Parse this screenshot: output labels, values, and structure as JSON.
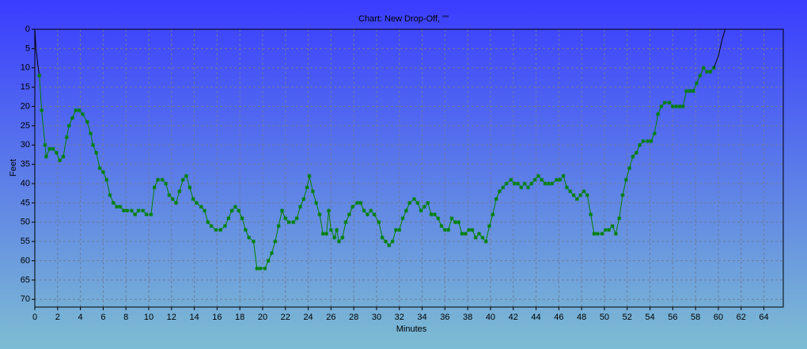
{
  "chart_data": {
    "type": "line",
    "title": "Chart: New Drop-Off, \"\"",
    "xlabel": "Minutes",
    "ylabel": "Feet",
    "xlim": [
      0,
      65.7
    ],
    "ylim": [
      0,
      72
    ],
    "y_inverted": true,
    "grid": true,
    "xticks": [
      0,
      2,
      4,
      6,
      8,
      10,
      12,
      14,
      16,
      18,
      20,
      22,
      24,
      26,
      28,
      30,
      32,
      34,
      36,
      38,
      40,
      42,
      44,
      46,
      48,
      50,
      52,
      54,
      56,
      58,
      60,
      62,
      64
    ],
    "yticks": [
      0,
      5,
      10,
      15,
      20,
      25,
      30,
      35,
      40,
      45,
      50,
      55,
      60,
      65,
      70
    ],
    "series": [
      {
        "color": "#000000",
        "markers": false,
        "x": [
          0,
          0.1,
          0.3,
          0.4
        ],
        "values": [
          0,
          5,
          10,
          12
        ]
      },
      {
        "color": "#008000",
        "markers": true,
        "x": [
          0.4,
          0.6,
          0.9,
          1.0,
          1.3,
          1.6,
          1.9,
          2.2,
          2.5,
          2.8,
          3.0,
          3.3,
          3.6,
          3.9,
          4.2,
          4.6,
          4.9,
          5.1,
          5.4,
          5.7,
          6.0,
          6.3,
          6.6,
          6.9,
          7.2,
          7.5,
          7.8,
          8.1,
          8.5,
          8.8,
          9.1,
          9.5,
          9.8,
          10.2,
          10.5,
          10.8,
          11.2,
          11.5,
          11.8,
          12.1,
          12.4,
          12.7,
          13.0,
          13.3,
          13.6,
          13.9,
          14.2,
          14.6,
          14.9,
          15.2,
          15.5,
          15.9,
          16.3,
          16.7,
          17.0,
          17.3,
          17.6,
          17.9,
          18.2,
          18.5,
          18.8,
          19.2,
          19.5,
          19.8,
          20.2,
          20.5,
          20.8,
          21.1,
          21.4,
          21.7,
          22.0,
          22.3,
          22.7,
          23.0,
          23.3,
          23.6,
          23.9,
          24.1,
          24.4,
          24.7,
          25.0,
          25.3,
          25.6,
          25.8,
          26.0,
          26.3,
          26.5,
          26.7,
          27.0,
          27.3,
          27.6,
          27.9,
          28.3,
          28.6,
          28.9,
          29.2,
          29.5,
          29.8,
          30.2,
          30.5,
          30.8,
          31.1,
          31.4,
          31.7,
          32.0,
          32.3,
          32.6,
          32.9,
          33.3,
          33.6,
          33.9,
          34.2,
          34.5,
          34.8,
          35.1,
          35.4,
          35.7,
          36.0,
          36.3,
          36.6,
          36.9,
          37.2,
          37.5,
          37.8,
          38.1,
          38.4,
          38.7,
          39.0,
          39.3,
          39.6,
          39.9,
          40.2,
          40.5,
          40.8,
          41.1,
          41.4,
          41.8,
          42.1,
          42.4,
          42.7,
          43.0,
          43.3,
          43.6,
          43.9,
          44.2,
          44.5,
          44.8,
          45.1,
          45.4,
          45.8,
          46.1,
          46.4,
          46.7,
          47.0,
          47.3,
          47.6,
          47.9,
          48.2,
          48.5,
          48.8,
          49.1,
          49.4,
          49.8,
          50.1,
          50.4,
          50.7,
          51.0,
          51.3,
          51.6,
          51.9,
          52.2,
          52.5,
          52.8,
          53.1,
          53.4,
          53.8,
          54.1,
          54.4,
          54.7,
          55.0,
          55.3,
          55.7,
          56.0,
          56.3,
          56.6,
          56.9,
          57.2,
          57.5,
          57.8,
          58.1,
          58.4,
          58.7,
          59.0,
          59.3,
          59.6
        ],
        "values": [
          12,
          21,
          30,
          33,
          31,
          31,
          32,
          34,
          33,
          28,
          25,
          23,
          21,
          21,
          22,
          24,
          27,
          30,
          32,
          36,
          37,
          39,
          43,
          45,
          46,
          46,
          47,
          47,
          47,
          48,
          47,
          47,
          48,
          48,
          41,
          39,
          39,
          40,
          43,
          44,
          45,
          42,
          39,
          38,
          41,
          44,
          45,
          46,
          47,
          50,
          51,
          52,
          52,
          51,
          49,
          47,
          46,
          47,
          49,
          52,
          54,
          55,
          62,
          62,
          62,
          60,
          58,
          55,
          51,
          47,
          49,
          50,
          50,
          49,
          46,
          44,
          41,
          38,
          42,
          45,
          48,
          53,
          53,
          47,
          52,
          54,
          52,
          55,
          54,
          50,
          48,
          46,
          45,
          45,
          47,
          48,
          47,
          48,
          50,
          54,
          55,
          56,
          55,
          52,
          52,
          49,
          47,
          45,
          44,
          45,
          47,
          46,
          45,
          48,
          48,
          49,
          51,
          52,
          52,
          49,
          50,
          50,
          53,
          53,
          52,
          52,
          54,
          53,
          54,
          55,
          51,
          48,
          44,
          42,
          41,
          40,
          39,
          40,
          40,
          41,
          40,
          41,
          40,
          39,
          38,
          39,
          40,
          40,
          40,
          39,
          39,
          38,
          41,
          42,
          43,
          44,
          43,
          42,
          43,
          48,
          53,
          53,
          53,
          52,
          52,
          51,
          53,
          49,
          43,
          39,
          36,
          33,
          32,
          30,
          29,
          29,
          29,
          27,
          22,
          20,
          19,
          19,
          20,
          20,
          20,
          20,
          16,
          16,
          16,
          14,
          12,
          10,
          11,
          11,
          10
        ]
      },
      {
        "color": "#000000",
        "markers": false,
        "x": [
          59.6,
          60.0,
          60.3,
          60.6
        ],
        "values": [
          10,
          7,
          3,
          0
        ]
      }
    ]
  }
}
